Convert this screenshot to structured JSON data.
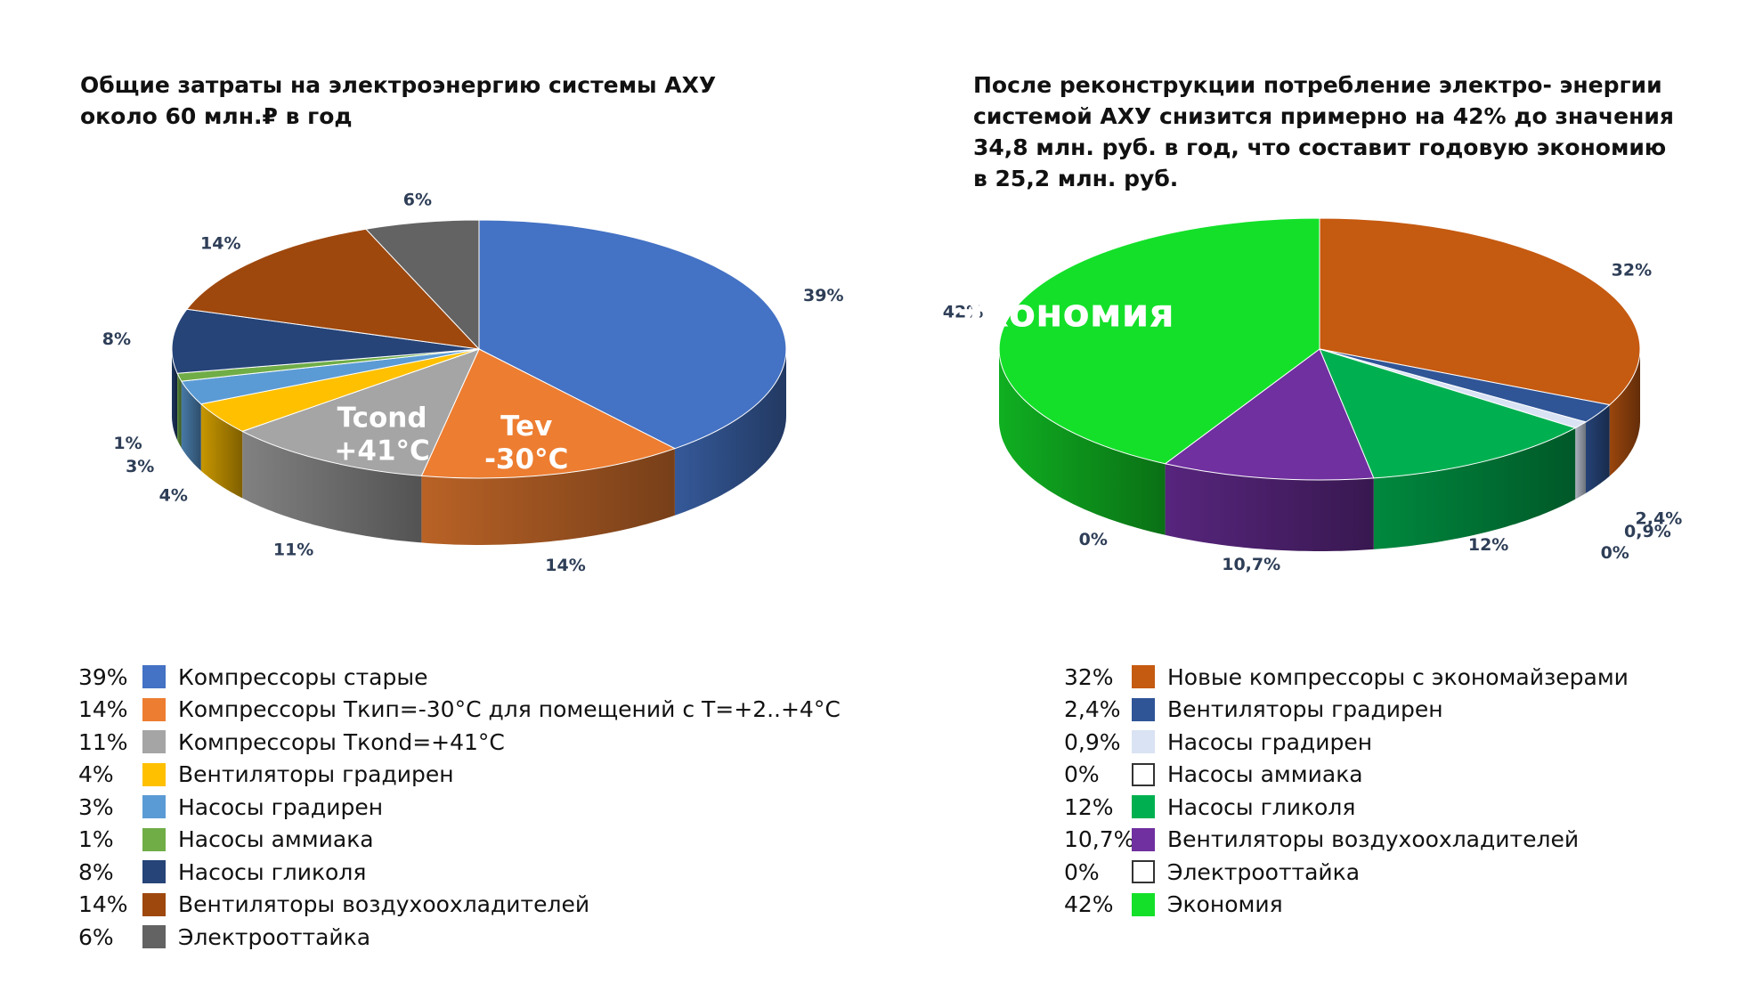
{
  "chart_data": [
    {
      "type": "pie",
      "title": "Общие затраты на электроэнергию  системы АХУ\nоколо 60 млн.₽ в год",
      "slices": [
        {
          "name": "Компрессоры старые",
          "value": 39,
          "label": "39%",
          "color": "#4472C4"
        },
        {
          "name": "Компрессоры Ткип=-30°С для помещений с Т=+2..+4°С",
          "value": 14,
          "label": "14%",
          "color": "#ED7D31"
        },
        {
          "name": "Компрессоры Ткond=+41°С",
          "value": 11,
          "label": "11%",
          "color": "#A5A5A5"
        },
        {
          "name": "Вентиляторы градирен",
          "value": 4,
          "label": "4%",
          "color": "#FFC000"
        },
        {
          "name": "Насосы градирен",
          "value": 3,
          "label": "3%",
          "color": "#5B9BD5"
        },
        {
          "name": "Насосы аммиака",
          "value": 1,
          "label": "1%",
          "color": "#70AD47"
        },
        {
          "name": "Насосы гликоля",
          "value": 8,
          "label": "8%",
          "color": "#264478"
        },
        {
          "name": "Вентиляторы воздухоохладителей",
          "value": 14,
          "label": "14%",
          "color": "#9E480E"
        },
        {
          "name": "Электрооттайка",
          "value": 6,
          "label": "6%",
          "color": "#636363"
        }
      ],
      "inner_labels": [
        {
          "slice": 1,
          "lines": [
            "Tev",
            "-30°C"
          ]
        },
        {
          "slice": 2,
          "lines": [
            "Tcond",
            "+41°C"
          ]
        }
      ],
      "legend": [
        {
          "pct": "39%",
          "label": "Компрессоры старые",
          "color": "#4472C4"
        },
        {
          "pct": "14%",
          "label": "Компрессоры Ткип=-30°С для помещений с Т=+2..+4°С",
          "color": "#ED7D31"
        },
        {
          "pct": "11%",
          "label": "Компрессоры Ткond=+41°С",
          "color": "#A5A5A5"
        },
        {
          "pct": "4%",
          "label": "Вентиляторы градирен",
          "color": "#FFC000"
        },
        {
          "pct": "3%",
          "label": "Насосы градирен",
          "color": "#5B9BD5"
        },
        {
          "pct": "1%",
          "label": "Насосы аммиака",
          "color": "#70AD47"
        },
        {
          "pct": "8%",
          "label": "Насосы гликоля",
          "color": "#264478"
        },
        {
          "pct": "14%",
          "label": "Вентиляторы воздухоохладителей",
          "color": "#9E480E"
        },
        {
          "pct": "6%",
          "label": "Электрооттайка",
          "color": "#636363"
        }
      ],
      "legend_placement": "bottom"
    },
    {
      "type": "pie",
      "title": "После реконструкции потребление электро- энергии\nсистемой АХУ снизится примерно на 42% до значения\n34,8 млн.  руб. в год, что составит годовую экономию\nв 25,2 млн. руб.",
      "slices": [
        {
          "name": "Новые компрессоры с экономайзерами",
          "value": 32,
          "label": "32%",
          "color": "#C55A11"
        },
        {
          "name": "Вентиляторы градирен",
          "value": 2.4,
          "label": "2,4%",
          "color": "#2F5597"
        },
        {
          "name": "Насосы градирен",
          "value": 0.9,
          "label": "0,9%",
          "color": "#DAE3F3"
        },
        {
          "name": "Насосы аммиака",
          "value": 0,
          "label": "0%",
          "color": "#FFFFFF"
        },
        {
          "name": "Насосы гликоля",
          "value": 12,
          "label": "12%",
          "color": "#00B050"
        },
        {
          "name": "Вентиляторы воздухоохладителей",
          "value": 10.7,
          "label": "10,7%",
          "color": "#7030A0"
        },
        {
          "name": "Электрооттайка",
          "value": 0,
          "label": "0%",
          "color": "#FFFFFF"
        },
        {
          "name": "Экономия",
          "value": 42,
          "label": "42%",
          "color": "#14E02A"
        }
      ],
      "inner_labels": [
        {
          "slice": 7,
          "lines": [
            "42%",
            "Экономия"
          ]
        }
      ],
      "legend": [
        {
          "pct": "32%",
          "label": "Новые компрессоры с экономайзерами",
          "color": "#C55A11"
        },
        {
          "pct": "2,4%",
          "label": "Вентиляторы градирен",
          "color": "#2F5597"
        },
        {
          "pct": "0,9%",
          "label": "Насосы градирен",
          "color": "#DAE3F3"
        },
        {
          "pct": "0%",
          "label": "Насосы аммиака",
          "color": "#FFFFFF"
        },
        {
          "pct": "12%",
          "label": "Насосы гликоля",
          "color": "#00B050"
        },
        {
          "pct": "10,7%",
          "label": "Вентиляторы воздухоохладителей",
          "color": "#7030A0"
        },
        {
          "pct": "0%",
          "label": "Электрооттайка",
          "color": "#FFFFFF"
        },
        {
          "pct": "42%",
          "label": "Экономия",
          "color": "#14E02A"
        }
      ],
      "legend_placement": "bottom"
    }
  ]
}
